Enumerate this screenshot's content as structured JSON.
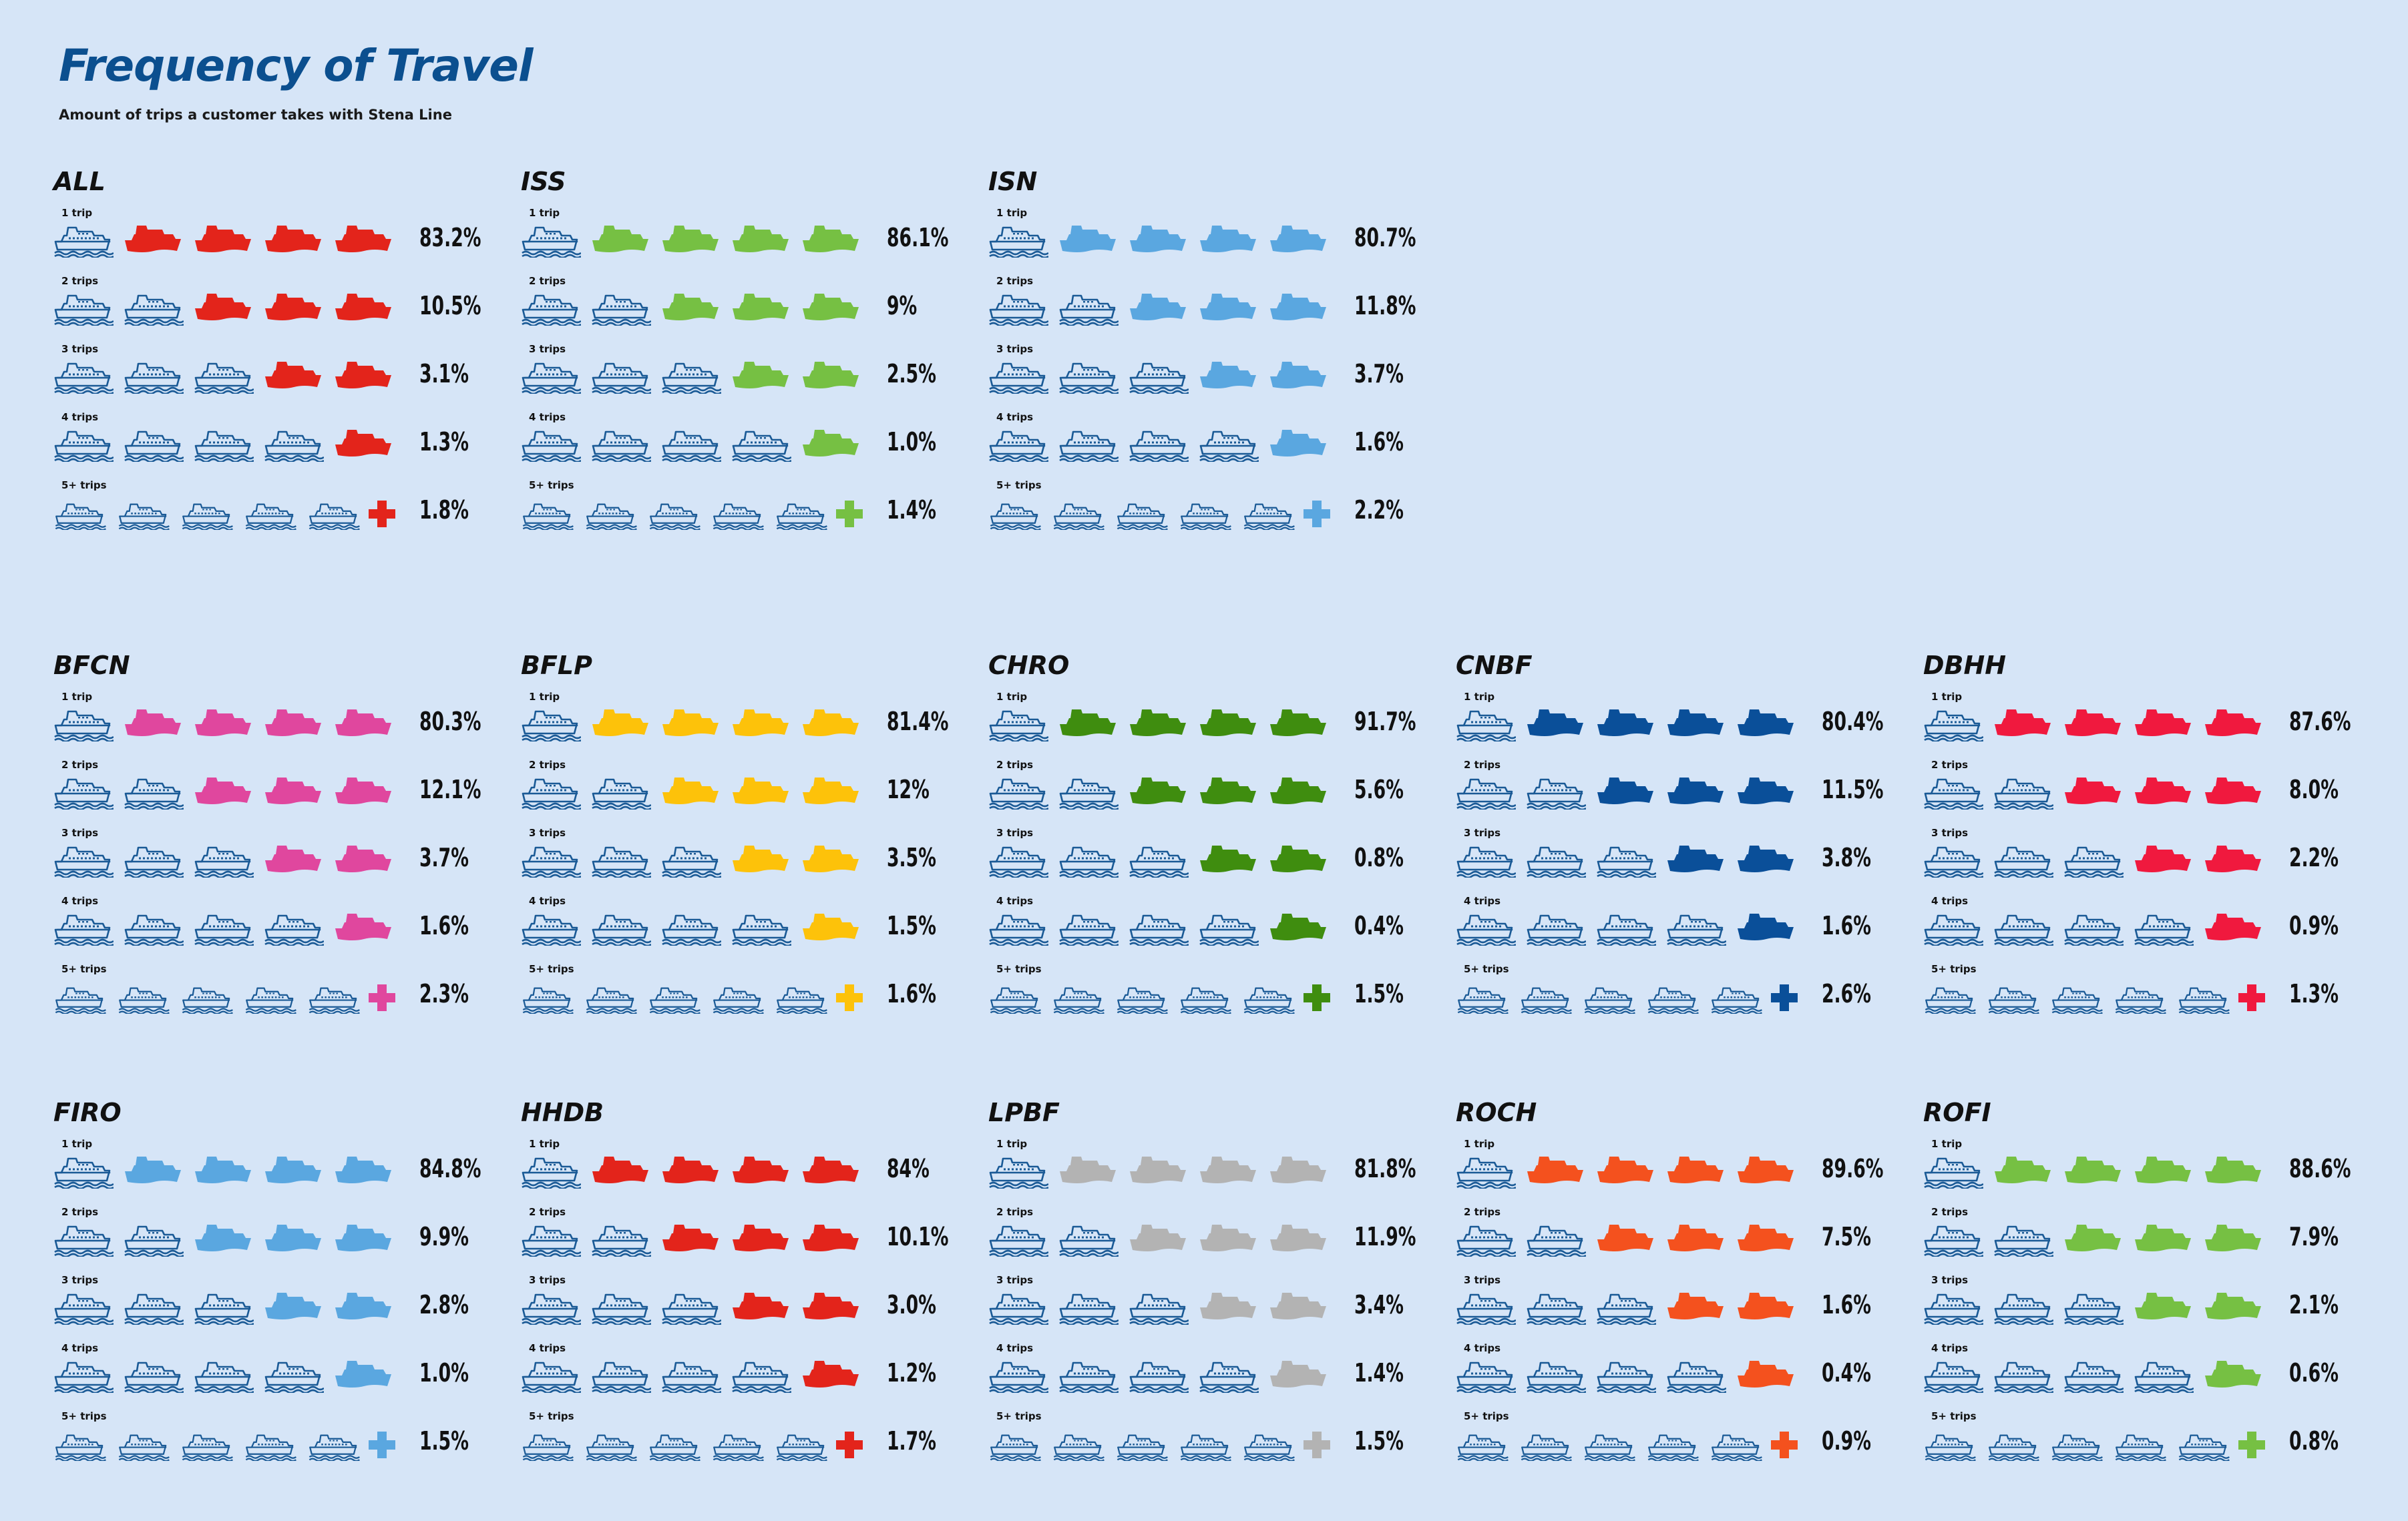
{
  "title": "Frequency of Travel",
  "subtitle": "Amount of trips a customer takes with Stena Line",
  "outline_color": "#1a5a96",
  "icons": {
    "outline": "ship-outline-icon",
    "filled": "ship-filled-icon",
    "plus": "plus-icon"
  },
  "chart_data": {
    "type": "pictograph",
    "icons_per_row": 5,
    "row_labels": [
      "1 trip",
      "2 trips",
      "3 trips",
      "4 trips",
      "5+ trips"
    ],
    "routes": [
      {
        "name": "ALL",
        "color": "#e3241b",
        "values": [
          "83.2%",
          "10.5%",
          "3.1%",
          "1.3%",
          "1.8%"
        ]
      },
      {
        "name": "ISS",
        "color": "#76c043",
        "values": [
          "86.1%",
          "9%",
          "2.5%",
          "1.0%",
          "1.4%"
        ]
      },
      {
        "name": "ISN",
        "color": "#5aa7e0",
        "values": [
          "80.7%",
          "11.8%",
          "3.7%",
          "1.6%",
          "2.2%"
        ]
      },
      {
        "name": "BFCN",
        "color": "#e0479e",
        "values": [
          "80.3%",
          "12.1%",
          "3.7%",
          "1.6%",
          "2.3%"
        ]
      },
      {
        "name": "BFLP",
        "color": "#fdc20a",
        "values": [
          "81.4%",
          "12%",
          "3.5%",
          "1.5%",
          "1.6%"
        ]
      },
      {
        "name": "CHRO",
        "color": "#3f8d0f",
        "values": [
          "91.7%",
          "5.6%",
          "0.8%",
          "0.4%",
          "1.5%"
        ]
      },
      {
        "name": "CNBF",
        "color": "#0a4f99",
        "values": [
          "80.4%",
          "11.5%",
          "3.8%",
          "1.6%",
          "2.6%"
        ]
      },
      {
        "name": "DBHH",
        "color": "#f0193e",
        "values": [
          "87.6%",
          "8.0%",
          "2.2%",
          "0.9%",
          "1.3%"
        ]
      },
      {
        "name": "FIRO",
        "color": "#5aa7e0",
        "values": [
          "84.8%",
          "9.9%",
          "2.8%",
          "1.0%",
          "1.5%"
        ]
      },
      {
        "name": "HHDB",
        "color": "#e3241b",
        "values": [
          "84%",
          "10.1%",
          "3.0%",
          "1.2%",
          "1.7%"
        ]
      },
      {
        "name": "LPBF",
        "color": "#b3b3b3",
        "values": [
          "81.8%",
          "11.9%",
          "3.4%",
          "1.4%",
          "1.5%"
        ]
      },
      {
        "name": "ROCH",
        "color": "#f4511e",
        "values": [
          "89.6%",
          "7.5%",
          "1.6%",
          "0.4%",
          "0.9%"
        ]
      },
      {
        "name": "ROFI",
        "color": "#76c043",
        "values": [
          "88.6%",
          "7.9%",
          "2.1%",
          "0.6%",
          "0.8%"
        ]
      }
    ]
  }
}
